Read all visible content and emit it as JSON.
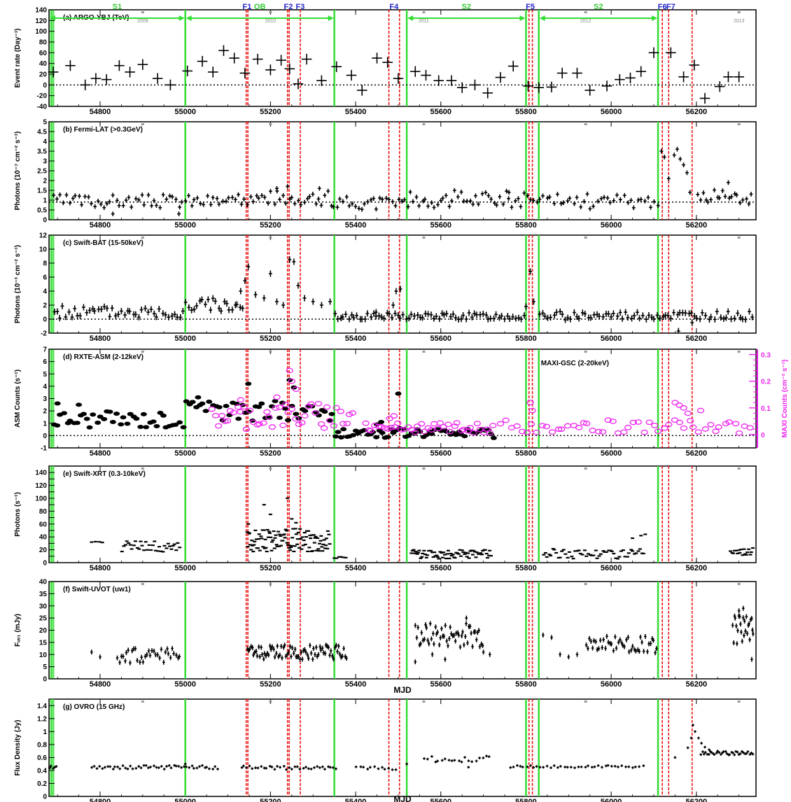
{
  "colors": {
    "data": "#000000",
    "green": "#33dd33",
    "red": "#ee1111",
    "magenta": "#ee22ee",
    "flare_label": "#2222cc",
    "period_label": "#33cc33"
  },
  "xaxis": {
    "xlim": [
      54680,
      56340
    ],
    "ticks": [
      54800,
      55000,
      55200,
      55400,
      55600,
      55800,
      56000,
      56200
    ],
    "labels": [
      "54800",
      "55000",
      "55200",
      "55400",
      "55600",
      "55800",
      "56000",
      "56200"
    ],
    "title": "MJD"
  },
  "periods": [
    {
      "label": "S1",
      "start": 54680,
      "end": 55000
    },
    {
      "label": "OB",
      "start": 55000,
      "end": 55350
    },
    {
      "label": "S2",
      "start": 55520,
      "end": 55800
    },
    {
      "label": "S2",
      "start": 55830,
      "end": 56110
    }
  ],
  "green_lines": [
    55000,
    55350,
    55520,
    55800,
    55830,
    56110
  ],
  "flares": [
    {
      "label": "F1",
      "mjd": 55145,
      "lines": [
        55143,
        55147
      ]
    },
    {
      "label": "F2",
      "mjd": 55242,
      "lines": [
        55240,
        55244
      ]
    },
    {
      "label": "F3",
      "mjd": 55270,
      "lines": [
        55270
      ]
    },
    {
      "label": "F4",
      "mjd": 55490,
      "lines": [
        55478,
        55503
      ]
    },
    {
      "label": "F5",
      "mjd": 55810,
      "lines": [
        55807,
        55815
      ]
    },
    {
      "label": "F6",
      "mjd": 56120,
      "lines": [
        56120
      ]
    },
    {
      "label": "F7",
      "mjd": 56140,
      "lines": [
        56135
      ]
    }
  ],
  "extra_red_lines": [
    56190
  ],
  "years": [
    {
      "label": "2009",
      "mjd": 54900
    },
    {
      "label": "2010",
      "mjd": 55200
    },
    {
      "label": "2011",
      "mjd": 55560
    },
    {
      "label": "2012",
      "mjd": 55940
    },
    {
      "label": "2013",
      "mjd": 56300
    }
  ],
  "chart_data": [
    {
      "type": "scatter",
      "id": "a",
      "label": "(a) ARGO-YBJ (TeV)",
      "ylabel": "Event rate (Day⁻¹)",
      "ylim": [
        -40,
        140
      ],
      "yticks": [
        -40,
        -20,
        0,
        20,
        40,
        60,
        80,
        100,
        120,
        140
      ],
      "zero_line": 0,
      "style": "cross",
      "x": [
        54690,
        54730,
        54765,
        54790,
        54815,
        54845,
        54870,
        54900,
        54935,
        54965,
        55005,
        55040,
        55065,
        55090,
        55115,
        55140,
        55170,
        55200,
        55225,
        55245,
        55265,
        55285,
        55320,
        55355,
        55390,
        55415,
        55450,
        55475,
        55500,
        55540,
        55565,
        55595,
        55625,
        55650,
        55680,
        55710,
        55740,
        55770,
        55805,
        55830,
        55860,
        55885,
        55920,
        55950,
        55990,
        56020,
        56045,
        56070,
        56100,
        56140,
        56170,
        56195,
        56220,
        56255,
        56275,
        56300
      ],
      "y": [
        24,
        36,
        0,
        12,
        10,
        36,
        24,
        38,
        12,
        0,
        26,
        44,
        24,
        64,
        50,
        22,
        48,
        28,
        46,
        30,
        2,
        48,
        8,
        34,
        18,
        -10,
        50,
        42,
        12,
        25,
        18,
        8,
        8,
        -5,
        0,
        -15,
        14,
        35,
        -2,
        -5,
        -4,
        22,
        22,
        -10,
        -2,
        10,
        13,
        25,
        60,
        60,
        15,
        37,
        -25,
        -3,
        15,
        15
      ],
      "yerr": 10,
      "xerr": 12
    },
    {
      "type": "scatter",
      "id": "b",
      "label": "(b) Fermi-LAT (>0.3GeV)",
      "ylabel": "Photons (10⁻⁷ cm⁻² s⁻¹)",
      "ylim": [
        0,
        5
      ],
      "yticks": [
        0,
        0.5,
        1,
        1.5,
        2,
        2.5,
        3,
        3.5,
        4,
        4.5,
        5
      ],
      "ticklabels": [
        "0",
        "0.5",
        "1",
        "1.5",
        "2",
        "2.5",
        "3",
        "3.5",
        "4",
        "4.5",
        "5"
      ],
      "zero_line": 0.9,
      "style": "cross",
      "segments": [
        {
          "x0": 54690,
          "x1": 55130,
          "n": 60,
          "base": 0.95,
          "amp": 0.35,
          "seed": 3
        },
        {
          "x0": 55130,
          "x1": 55340,
          "n": 30,
          "base": 1.1,
          "amp": 0.4,
          "seed": 7
        },
        {
          "x0": 55340,
          "x1": 55520,
          "n": 25,
          "base": 0.85,
          "amp": 0.35,
          "seed": 11
        },
        {
          "x0": 55520,
          "x1": 55800,
          "n": 40,
          "base": 1.05,
          "amp": 0.45,
          "seed": 17
        },
        {
          "x0": 55800,
          "x1": 56115,
          "n": 40,
          "base": 0.95,
          "amp": 0.4,
          "seed": 23
        },
        {
          "x0": 56200,
          "x1": 56335,
          "n": 20,
          "base": 1.2,
          "amp": 0.4,
          "seed": 29
        }
      ],
      "points": [
        [
          56118,
          3.5
        ],
        [
          56125,
          3.2
        ],
        [
          56135,
          2.1
        ],
        [
          56148,
          3.3
        ],
        [
          56155,
          3.6
        ],
        [
          56162,
          3.1
        ],
        [
          56170,
          2.8
        ],
        [
          56178,
          2.4
        ],
        [
          56185,
          1.4
        ],
        [
          55215,
          1.6
        ],
        [
          55240,
          1.7
        ],
        [
          55315,
          1.6
        ],
        [
          55760,
          1.4
        ],
        [
          56275,
          1.9
        ],
        [
          54830,
          0.3
        ],
        [
          54985,
          0.3
        ]
      ],
      "yerr": 0.12,
      "xerr": 4
    },
    {
      "type": "scatter",
      "id": "c",
      "label": "(c) Swift-BAT (15-50keV)",
      "ylabel": "Photons (10⁻³ cm⁻² s⁻¹)",
      "ylim": [
        -2,
        12
      ],
      "yticks": [
        -2,
        0,
        2,
        4,
        6,
        8,
        10,
        12
      ],
      "zero_line": 0,
      "style": "cross",
      "segments": [
        {
          "x0": 54690,
          "x1": 55000,
          "n": 45,
          "base": 1.0,
          "amp": 0.9,
          "seed": 5
        },
        {
          "x0": 55000,
          "x1": 55140,
          "n": 22,
          "base": 2.0,
          "amp": 1.0,
          "seed": 9
        },
        {
          "x0": 55350,
          "x1": 55800,
          "n": 70,
          "base": 0.4,
          "amp": 0.5,
          "seed": 13
        },
        {
          "x0": 55830,
          "x1": 56335,
          "n": 75,
          "base": 0.5,
          "amp": 0.6,
          "seed": 19
        }
      ],
      "points": [
        [
          55130,
          4.0
        ],
        [
          55140,
          5.5
        ],
        [
          55148,
          7.5
        ],
        [
          55165,
          3.5
        ],
        [
          55185,
          3.0
        ],
        [
          55200,
          6.5
        ],
        [
          55215,
          2.5
        ],
        [
          55230,
          2.0
        ],
        [
          55245,
          8.5
        ],
        [
          55255,
          8.2
        ],
        [
          55265,
          4.8
        ],
        [
          55280,
          3.0
        ],
        [
          55300,
          2.5
        ],
        [
          55320,
          2.0
        ],
        [
          55340,
          2.5
        ],
        [
          55488,
          2.0
        ],
        [
          55495,
          4.0
        ],
        [
          55505,
          4.3
        ],
        [
          55810,
          6.8
        ],
        [
          55818,
          2.5
        ],
        [
          56158,
          -1.7
        ],
        [
          56190,
          -0.5
        ],
        [
          55448,
          1.0
        ],
        [
          55800,
          1.8
        ]
      ],
      "yerr": 0.45,
      "xerr": 4
    },
    {
      "type": "scatter",
      "id": "d",
      "label": "(d) RXTE-ASM (2-12keV)",
      "ylabel": "ASM Counts (s⁻¹)",
      "ylim": [
        -1,
        7
      ],
      "yticks": [
        -1,
        0,
        1,
        2,
        3,
        4,
        5,
        6,
        7
      ],
      "zero_line": 0,
      "style": "dot",
      "right_axis": {
        "label": "MAXI-GSC (2-20keV)",
        "ylabel": "MAXI Counts (cm⁻² s⁻¹)",
        "ticks": [
          0,
          0.1,
          0.2,
          0.3
        ],
        "ticklabels": [
          "0",
          "0.1",
          "0.2",
          "0.3"
        ],
        "range": [
          -0.05,
          0.32
        ]
      },
      "segments": [
        {
          "x0": 54690,
          "x1": 55000,
          "n": 40,
          "base": 1.3,
          "amp": 0.7,
          "seed": 31
        },
        {
          "x0": 55000,
          "x1": 55350,
          "n": 45,
          "base": 2.0,
          "amp": 0.8,
          "seed": 37
        },
        {
          "x0": 55350,
          "x1": 55730,
          "n": 55,
          "base": 0.2,
          "amp": 0.4,
          "seed": 41
        }
      ],
      "points": [
        [
          54700,
          2.6
        ],
        [
          54750,
          2.5
        ],
        [
          55030,
          3.1
        ],
        [
          55148,
          4.2
        ],
        [
          55245,
          4.5
        ],
        [
          55255,
          3.9
        ],
        [
          55500,
          3.4
        ],
        [
          55460,
          1.1
        ],
        [
          55450,
          0.9
        ]
      ],
      "maxi": {
        "segments": [
          {
            "x0": 55060,
            "x1": 55400,
            "n": 45,
            "base": 0.07,
            "amp": 0.05,
            "seed": 43
          },
          {
            "x0": 55420,
            "x1": 55730,
            "n": 40,
            "base": 0.025,
            "amp": 0.02,
            "seed": 47
          },
          {
            "x0": 55740,
            "x1": 56335,
            "n": 50,
            "base": 0.03,
            "amp": 0.025,
            "seed": 53
          }
        ],
        "points": [
          [
            55245,
            0.24
          ],
          [
            55250,
            0.2
          ],
          [
            55260,
            0.17
          ],
          [
            55215,
            0.14
          ],
          [
            55130,
            0.13
          ],
          [
            55810,
            0.12
          ],
          [
            55815,
            0.09
          ],
          [
            56150,
            0.12
          ],
          [
            56160,
            0.11
          ],
          [
            56170,
            0.1
          ],
          [
            56180,
            0.08
          ],
          [
            56210,
            0.09
          ],
          [
            55480,
            0.06
          ],
          [
            55490,
            0.07
          ]
        ]
      }
    },
    {
      "type": "scatter",
      "id": "e",
      "label": "(e) Swift-XRT (0.3-10keV)",
      "ylabel": "Photons (s⁻¹)",
      "ylim": [
        0,
        150
      ],
      "yticks": [
        0,
        10,
        20,
        30,
        40,
        50,
        60,
        70,
        80,
        90,
        100,
        110,
        120,
        130,
        140
      ],
      "ticklabels": [
        "0",
        "",
        "20",
        "",
        "40",
        "",
        "60",
        "",
        "80",
        "",
        "100",
        "",
        "120",
        "",
        "140"
      ],
      "zero_line": null,
      "style": "dash",
      "segments": [
        {
          "x0": 54780,
          "x1": 54810,
          "n": 4,
          "base": 32,
          "amp": 2,
          "seed": 59
        },
        {
          "x0": 54850,
          "x1": 54990,
          "n": 35,
          "base": 25,
          "amp": 9,
          "seed": 61
        },
        {
          "x0": 55145,
          "x1": 55340,
          "n": 110,
          "base": 35,
          "amp": 18,
          "seed": 67
        },
        {
          "x0": 55350,
          "x1": 55380,
          "n": 6,
          "base": 8,
          "amp": 1,
          "seed": 71
        },
        {
          "x0": 55530,
          "x1": 55720,
          "n": 70,
          "base": 13,
          "amp": 7,
          "seed": 73
        },
        {
          "x0": 55840,
          "x1": 56080,
          "n": 55,
          "base": 14,
          "amp": 8,
          "seed": 79
        },
        {
          "x0": 56280,
          "x1": 56335,
          "n": 18,
          "base": 17,
          "amp": 6,
          "seed": 83
        }
      ],
      "points": [
        [
          55185,
          90
        ],
        [
          55240,
          100
        ],
        [
          55250,
          68
        ],
        [
          55260,
          62
        ],
        [
          55148,
          60
        ],
        [
          55200,
          75
        ],
        [
          56070,
          42
        ],
        [
          56080,
          44
        ],
        [
          56050,
          38
        ]
      ],
      "yerr": 0,
      "xerr": 3
    },
    {
      "type": "scatter",
      "id": "f",
      "label": "(f) Swift-UVOT (uw1)",
      "ylabel": "Fᵤᵥ₁ (mJy)",
      "ylim": [
        0,
        40
      ],
      "yticks": [
        0,
        5,
        10,
        15,
        20,
        25,
        30,
        35,
        40
      ],
      "zero_line": null,
      "style": "cross",
      "segments": [
        {
          "x0": 54840,
          "x1": 54990,
          "n": 35,
          "base": 9.5,
          "amp": 3,
          "seed": 89
        },
        {
          "x0": 55145,
          "x1": 55380,
          "n": 80,
          "base": 11,
          "amp": 3,
          "seed": 97
        },
        {
          "x0": 55540,
          "x1": 55700,
          "n": 55,
          "base": 18,
          "amp": 5,
          "seed": 101
        },
        {
          "x0": 55940,
          "x1": 56110,
          "n": 45,
          "base": 14,
          "amp": 3.5,
          "seed": 103
        },
        {
          "x0": 56285,
          "x1": 56335,
          "n": 25,
          "base": 20,
          "amp": 6,
          "seed": 107
        }
      ],
      "points": [
        [
          54780,
          11
        ],
        [
          54800,
          9
        ],
        [
          55840,
          18
        ],
        [
          55860,
          17
        ],
        [
          55880,
          10
        ],
        [
          55900,
          9
        ],
        [
          55920,
          10
        ],
        [
          55700,
          11
        ],
        [
          55715,
          10
        ],
        [
          55660,
          25
        ],
        [
          56300,
          28
        ],
        [
          56310,
          29
        ],
        [
          56330,
          8
        ],
        [
          55540,
          7
        ],
        [
          55580,
          10
        ],
        [
          55610,
          8
        ]
      ],
      "yerr": 1.0,
      "xerr": 3
    },
    {
      "type": "scatter",
      "id": "g",
      "label": "(g) OVRO (15 GHz)",
      "ylabel": "Flux Density (Jy)",
      "ylim": [
        0,
        1.5
      ],
      "yticks": [
        0,
        0.2,
        0.4,
        0.6,
        0.8,
        1.0,
        1.2,
        1.4
      ],
      "ticklabels": [
        "0",
        "0.2",
        "0.4",
        "0.6",
        "0.8",
        "1",
        "1.2",
        "1.4"
      ],
      "zero_line": null,
      "style": "cross",
      "segments": [
        {
          "x0": 54680,
          "x1": 54700,
          "n": 5,
          "base": 0.45,
          "amp": 0.02,
          "seed": 109
        },
        {
          "x0": 54780,
          "x1": 55080,
          "n": 50,
          "base": 0.45,
          "amp": 0.03,
          "seed": 113
        },
        {
          "x0": 55130,
          "x1": 55360,
          "n": 35,
          "base": 0.44,
          "amp": 0.03,
          "seed": 127
        },
        {
          "x0": 55400,
          "x1": 55500,
          "n": 12,
          "base": 0.44,
          "amp": 0.03,
          "seed": 131
        },
        {
          "x0": 55560,
          "x1": 55720,
          "n": 20,
          "base": 0.58,
          "amp": 0.05,
          "seed": 137
        },
        {
          "x0": 55760,
          "x1": 56080,
          "n": 40,
          "base": 0.46,
          "amp": 0.02,
          "seed": 139
        },
        {
          "x0": 56210,
          "x1": 56335,
          "n": 35,
          "base": 0.67,
          "amp": 0.03,
          "seed": 149
        }
      ],
      "points": [
        [
          56150,
          0.6
        ],
        [
          56180,
          0.75
        ],
        [
          56188,
          0.9
        ],
        [
          56192,
          1.1
        ],
        [
          56197,
          1.0
        ],
        [
          56205,
          0.9
        ],
        [
          56212,
          0.82
        ],
        [
          56220,
          0.76
        ],
        [
          56230,
          0.72
        ],
        [
          55000,
          0.5
        ],
        [
          55665,
          0.45
        ],
        [
          55520,
          0.5
        ]
      ],
      "yerr": 0.02,
      "xerr": 3
    }
  ]
}
